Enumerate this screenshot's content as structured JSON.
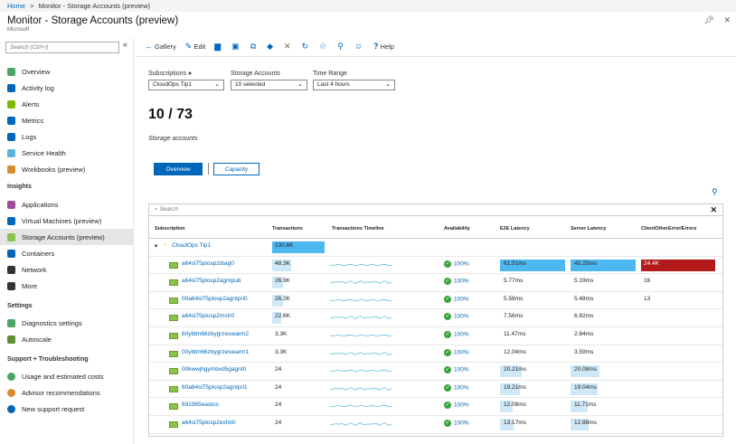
{
  "breadcrumb": {
    "home": "Home",
    "sep": ">",
    "current": "Monitor - Storage Accounts (preview)"
  },
  "header": {
    "title": "Monitor - Storage Accounts (preview)",
    "subtitle": "Microsoft"
  },
  "sidebar": {
    "search_placeholder": "Search (Ctrl+/)",
    "collapse": "«",
    "items": [
      {
        "label": "Overview",
        "icon": "overview-icon",
        "color": "#4aa564"
      },
      {
        "label": "Activity log",
        "icon": "activity-log-icon",
        "color": "#0067b8"
      },
      {
        "label": "Alerts",
        "icon": "alerts-icon",
        "color": "#7fba00"
      },
      {
        "label": "Metrics",
        "icon": "metrics-icon",
        "color": "#0067b8"
      },
      {
        "label": "Logs",
        "icon": "logs-icon",
        "color": "#0067b8"
      },
      {
        "label": "Service Health",
        "icon": "service-health-icon",
        "color": "#59b4d9"
      },
      {
        "label": "Workbooks (preview)",
        "icon": "workbooks-icon",
        "color": "#d98c2b"
      }
    ],
    "insights_label": "Insights",
    "insights": [
      {
        "label": "Applications",
        "icon": "applications-icon",
        "color": "#9b4f96"
      },
      {
        "label": "Virtual Machines (preview)",
        "icon": "virtual-machines-icon",
        "color": "#0067b8"
      },
      {
        "label": "Storage Accounts (preview)",
        "icon": "storage-accounts-icon",
        "color": "#8bc34a",
        "active": true
      },
      {
        "label": "Containers",
        "icon": "containers-icon",
        "color": "#0067b8"
      },
      {
        "label": "Network",
        "icon": "network-icon",
        "color": "#333333"
      },
      {
        "label": "More",
        "icon": "more-icon",
        "color": "#333333"
      }
    ],
    "settings_label": "Settings",
    "settings": [
      {
        "label": "Diagnostics settings",
        "icon": "diagnostics-icon",
        "color": "#4aa564"
      },
      {
        "label": "Autoscale",
        "icon": "autoscale-icon",
        "color": "#5f8f2f"
      }
    ],
    "support_label": "Support + Troubleshooting",
    "support": [
      {
        "label": "Usage and estimated costs",
        "icon": "usage-icon",
        "color": "#4aa564"
      },
      {
        "label": "Advisor recommendations",
        "icon": "advisor-icon",
        "color": "#d98c2b"
      },
      {
        "label": "New support request",
        "icon": "support-request-icon",
        "color": "#0067b8"
      }
    ]
  },
  "toolbar": {
    "gallery": "Gallery",
    "edit": "Edit",
    "help": "Help"
  },
  "filters": {
    "subscriptions_label": "Subscriptions",
    "subscriptions_value": "CloudOps Tip1",
    "storage_label": "Storage Accounts",
    "storage_value": "10 selected",
    "time_label": "Time Range",
    "time_value": "Last 4 hours"
  },
  "summary": {
    "count": "10 / 73",
    "label": "Storage accounts"
  },
  "tabs": {
    "overview": "Overview",
    "capacity": "Capacity"
  },
  "grid": {
    "search_placeholder": "Search",
    "columns": [
      "Subscription",
      "Transactions",
      "Transactions Timeline",
      "Availability",
      "E2E Latency",
      "Server Latency",
      "ClientOtherError/Errors"
    ],
    "group": {
      "name": "CloudOps Tip1",
      "transactions": "130.6K",
      "transactions_fill": 1.0
    },
    "rows": [
      {
        "name": "a64sl75plosp2diag0",
        "transactions": "48.3K",
        "tx_fill": 0.37,
        "availability": "100%",
        "e2e": "61.51ms",
        "e2e_fill": 1.0,
        "server": "45.25ms",
        "server_fill": 1.0,
        "errors": "24.4K",
        "errors_fill": 1.0
      },
      {
        "name": "a64sl75plosp2agntpub",
        "transactions": "26.9K",
        "tx_fill": 0.21,
        "availability": "100%",
        "e2e": "5.77ms",
        "e2e_fill": 0,
        "server": "5.19ms",
        "server_fill": 0,
        "errors": "16",
        "errors_fill": 0
      },
      {
        "name": "00a64sl75plosp2agntpri0",
        "transactions": "26.2K",
        "tx_fill": 0.2,
        "availability": "100%",
        "e2e": "5.58ms",
        "e2e_fill": 0,
        "server": "5.48ms",
        "server_fill": 0,
        "errors": "13",
        "errors_fill": 0
      },
      {
        "name": "a64sl75plosp2mstr0",
        "transactions": "22.6K",
        "tx_fill": 0.17,
        "availability": "100%",
        "e2e": "7.56ms",
        "e2e_fill": 0,
        "server": "6.82ms",
        "server_fill": 0,
        "errors": "",
        "errors_fill": 0
      },
      {
        "name": "60ybtm66zbygrzeswarm2",
        "transactions": "3.3K",
        "tx_fill": 0,
        "availability": "100%",
        "e2e": "11.47ms",
        "e2e_fill": 0,
        "server": "2.84ms",
        "server_fill": 0,
        "errors": "",
        "errors_fill": 0
      },
      {
        "name": "00ybtm66zbygrzeswarm1",
        "transactions": "3.3K",
        "tx_fill": 0,
        "availability": "100%",
        "e2e": "12.04ms",
        "e2e_fill": 0,
        "server": "3.59ms",
        "server_fill": 0,
        "errors": "",
        "errors_fill": 0
      },
      {
        "name": "00kwwjhgymbxd5gagnt0",
        "transactions": "24",
        "tx_fill": 0,
        "availability": "100%",
        "e2e": "20.21ms",
        "e2e_fill": 0.33,
        "server": "20.08ms",
        "server_fill": 0.44,
        "errors": "",
        "errors_fill": 0
      },
      {
        "name": "60a64sl75plosp2agntpri1",
        "transactions": "24",
        "tx_fill": 0,
        "availability": "100%",
        "e2e": "19.21ms",
        "e2e_fill": 0.31,
        "server": "19.04ms",
        "server_fill": 0.42,
        "errors": "",
        "errors_fill": 0
      },
      {
        "name": "691965eastus",
        "transactions": "24",
        "tx_fill": 0,
        "availability": "100%",
        "e2e": "12.08ms",
        "e2e_fill": 0.2,
        "server": "11.71ms",
        "server_fill": 0.26,
        "errors": "",
        "errors_fill": 0
      },
      {
        "name": "a64sl75plosp2exhb0",
        "transactions": "24",
        "tx_fill": 0,
        "availability": "100%",
        "e2e": "13.17ms",
        "e2e_fill": 0.21,
        "server": "12.88ms",
        "server_fill": 0.28,
        "errors": "",
        "errors_fill": 0
      }
    ]
  },
  "colors": {
    "accent": "#0067b8",
    "bar": "#cfe8f7",
    "bar_strong": "#4db8f0",
    "error": "#b31b1b",
    "ok": "#3aa33a"
  }
}
